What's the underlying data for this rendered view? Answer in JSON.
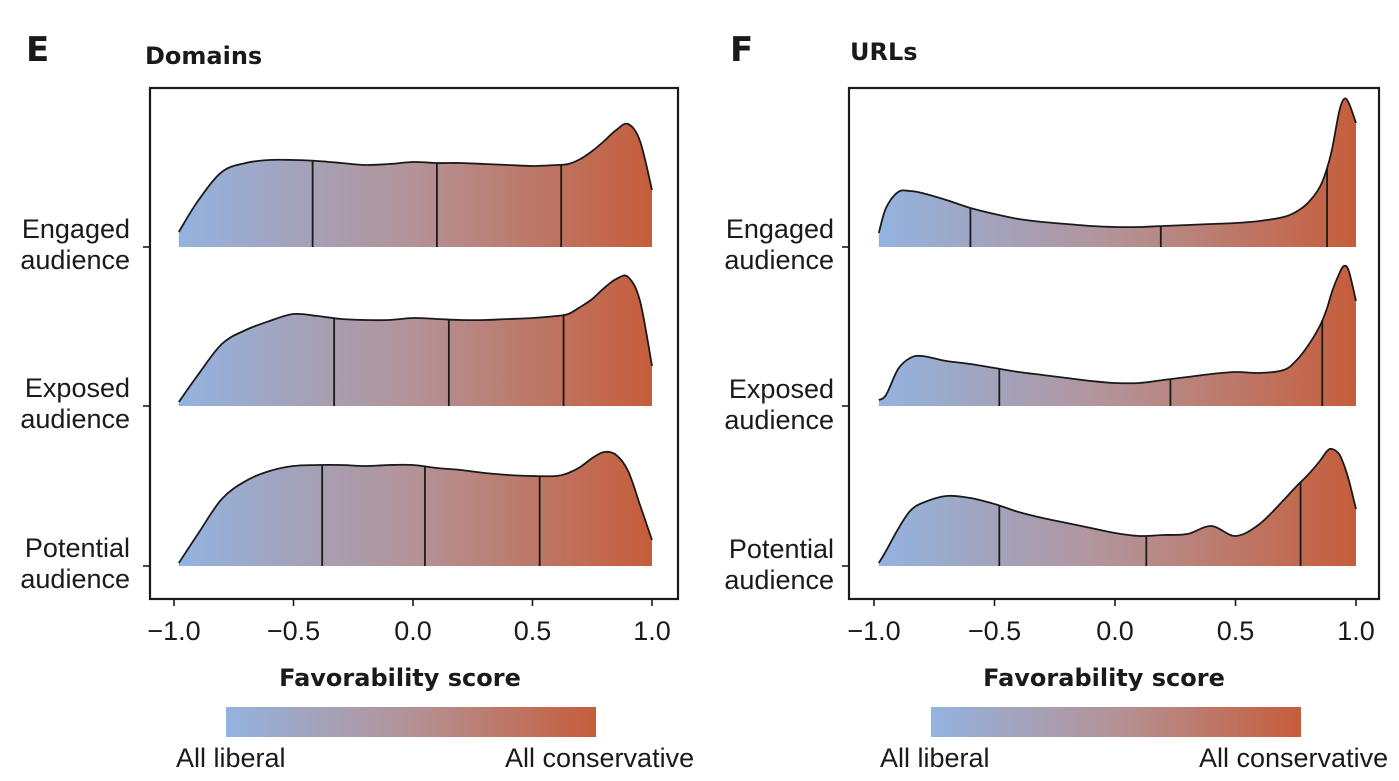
{
  "chart_data": [
    {
      "type": "area",
      "panel_letter": "E",
      "title": "Domains",
      "xlabel": "Favorability score",
      "xlim": [
        -1.0,
        1.0
      ],
      "xticks": [
        "−1.0",
        "−0.5",
        "0.0",
        "0.5",
        "1.0"
      ],
      "colorbar": {
        "left_label": "All liberal",
        "right_label": "All conservative"
      },
      "series": [
        {
          "name": "Engaged audience",
          "label_lines": [
            "Engaged",
            "audience"
          ],
          "quartiles": [
            -0.42,
            0.1,
            0.62
          ],
          "x": [
            -0.98,
            -0.9,
            -0.8,
            -0.7,
            -0.6,
            -0.5,
            -0.4,
            -0.3,
            -0.2,
            -0.1,
            0.0,
            0.1,
            0.2,
            0.3,
            0.4,
            0.5,
            0.6,
            0.65,
            0.7,
            0.75,
            0.8,
            0.85,
            0.9,
            0.95,
            1.0
          ],
          "y": [
            0.15,
            0.46,
            0.75,
            0.84,
            0.87,
            0.87,
            0.86,
            0.84,
            0.82,
            0.83,
            0.85,
            0.84,
            0.84,
            0.83,
            0.82,
            0.81,
            0.82,
            0.83,
            0.88,
            0.96,
            1.06,
            1.17,
            1.23,
            1.06,
            0.57
          ]
        },
        {
          "name": "Exposed audience",
          "label_lines": [
            "Exposed",
            "audience"
          ],
          "quartiles": [
            -0.33,
            0.15,
            0.63
          ],
          "x": [
            -0.98,
            -0.9,
            -0.8,
            -0.7,
            -0.6,
            -0.5,
            -0.4,
            -0.3,
            -0.2,
            -0.1,
            0.0,
            0.1,
            0.2,
            0.3,
            0.4,
            0.5,
            0.6,
            0.65,
            0.7,
            0.75,
            0.8,
            0.85,
            0.9,
            0.95,
            1.0
          ],
          "y": [
            0.04,
            0.31,
            0.62,
            0.76,
            0.85,
            0.92,
            0.9,
            0.87,
            0.86,
            0.86,
            0.88,
            0.87,
            0.86,
            0.86,
            0.87,
            0.88,
            0.9,
            0.92,
            0.99,
            1.07,
            1.18,
            1.27,
            1.29,
            1.05,
            0.4
          ]
        },
        {
          "name": "Potential audience",
          "label_lines": [
            "Potential",
            "audience"
          ],
          "quartiles": [
            -0.38,
            0.05,
            0.53
          ],
          "x": [
            -0.98,
            -0.9,
            -0.8,
            -0.7,
            -0.6,
            -0.5,
            -0.4,
            -0.3,
            -0.2,
            -0.1,
            0.0,
            0.1,
            0.2,
            0.3,
            0.4,
            0.5,
            0.6,
            0.65,
            0.7,
            0.75,
            0.8,
            0.85,
            0.9,
            0.95,
            1.0
          ],
          "y": [
            0.03,
            0.32,
            0.67,
            0.85,
            0.95,
            1.0,
            1.01,
            1.01,
            1.0,
            1.01,
            1.01,
            0.98,
            0.96,
            0.93,
            0.91,
            0.9,
            0.9,
            0.93,
            0.99,
            1.08,
            1.14,
            1.11,
            0.95,
            0.61,
            0.26
          ]
        }
      ]
    },
    {
      "type": "area",
      "panel_letter": "F",
      "title": "URLs",
      "xlabel": "Favorability score",
      "xlim": [
        -1.0,
        1.0
      ],
      "xticks": [
        "−1.0",
        "−0.5",
        "0.0",
        "0.5",
        "1.0"
      ],
      "colorbar": {
        "left_label": "All liberal",
        "right_label": "All conservative"
      },
      "series": [
        {
          "name": "Engaged audience",
          "label_lines": [
            "Engaged",
            "audience"
          ],
          "quartiles": [
            -0.6,
            0.19,
            0.88
          ],
          "x": [
            -0.98,
            -0.95,
            -0.9,
            -0.85,
            -0.8,
            -0.7,
            -0.6,
            -0.5,
            -0.4,
            -0.3,
            -0.2,
            -0.1,
            0.0,
            0.1,
            0.2,
            0.3,
            0.4,
            0.5,
            0.6,
            0.7,
            0.75,
            0.8,
            0.85,
            0.88,
            0.9,
            0.93,
            0.95,
            0.97,
            1.0
          ],
          "y": [
            0.14,
            0.39,
            0.55,
            0.56,
            0.54,
            0.47,
            0.39,
            0.33,
            0.28,
            0.25,
            0.23,
            0.21,
            0.2,
            0.2,
            0.21,
            0.22,
            0.23,
            0.24,
            0.26,
            0.3,
            0.35,
            0.44,
            0.6,
            0.79,
            0.97,
            1.35,
            1.48,
            1.44,
            1.24
          ]
        },
        {
          "name": "Exposed audience",
          "label_lines": [
            "Exposed",
            "audience"
          ],
          "quartiles": [
            -0.48,
            0.23,
            0.86
          ],
          "x": [
            -0.98,
            -0.95,
            -0.9,
            -0.85,
            -0.8,
            -0.7,
            -0.6,
            -0.5,
            -0.4,
            -0.3,
            -0.2,
            -0.1,
            0.0,
            0.1,
            0.2,
            0.3,
            0.4,
            0.5,
            0.6,
            0.7,
            0.75,
            0.8,
            0.85,
            0.88,
            0.9,
            0.93,
            0.95,
            0.97,
            1.0
          ],
          "y": [
            0.06,
            0.11,
            0.37,
            0.48,
            0.5,
            0.45,
            0.42,
            0.38,
            0.34,
            0.31,
            0.28,
            0.25,
            0.23,
            0.23,
            0.26,
            0.29,
            0.32,
            0.34,
            0.33,
            0.36,
            0.45,
            0.6,
            0.8,
            0.98,
            1.14,
            1.32,
            1.4,
            1.35,
            1.05
          ]
        },
        {
          "name": "Potential audience",
          "label_lines": [
            "Potential",
            "audience"
          ],
          "quartiles": [
            -0.48,
            0.13,
            0.77
          ],
          "x": [
            -0.98,
            -0.95,
            -0.9,
            -0.85,
            -0.8,
            -0.7,
            -0.6,
            -0.5,
            -0.4,
            -0.3,
            -0.2,
            -0.1,
            0.0,
            0.1,
            0.2,
            0.3,
            0.4,
            0.5,
            0.6,
            0.7,
            0.75,
            0.8,
            0.85,
            0.88,
            0.9,
            0.93,
            0.95,
            0.97,
            1.0
          ],
          "y": [
            0.03,
            0.15,
            0.37,
            0.55,
            0.63,
            0.7,
            0.68,
            0.62,
            0.54,
            0.48,
            0.43,
            0.38,
            0.33,
            0.3,
            0.31,
            0.32,
            0.4,
            0.3,
            0.42,
            0.66,
            0.79,
            0.91,
            1.05,
            1.15,
            1.17,
            1.12,
            1.01,
            0.86,
            0.57
          ]
        }
      ]
    }
  ]
}
